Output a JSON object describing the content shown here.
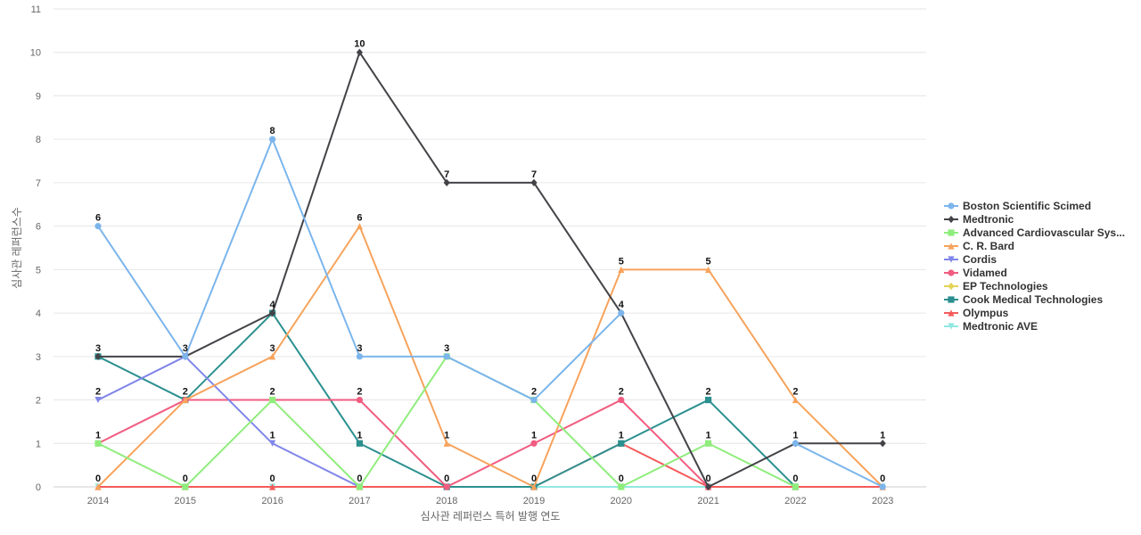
{
  "chart_data": {
    "type": "line",
    "title": "",
    "xlabel": "심사관 레퍼런스 특허 발행 연도",
    "ylabel": "심사관 레퍼런스수",
    "categories": [
      "2014",
      "2015",
      "2016",
      "2017",
      "2018",
      "2019",
      "2020",
      "2021",
      "2022",
      "2023"
    ],
    "ylim": [
      0,
      11
    ],
    "yticks": [
      "0",
      "1",
      "2",
      "3",
      "4",
      "5",
      "6",
      "7",
      "8",
      "9",
      "10",
      "11"
    ],
    "grid": true,
    "legend_position": "right",
    "series": [
      {
        "name": "Boston Scientific Scimed",
        "values": [
          6,
          3,
          8,
          3,
          3,
          2,
          4,
          null,
          1,
          0
        ],
        "color": "#7cb5ec",
        "marker": "circle"
      },
      {
        "name": "Medtronic",
        "values": [
          3,
          3,
          4,
          10,
          7,
          7,
          4,
          0,
          1,
          1
        ],
        "color": "#434348",
        "marker": "diamond"
      },
      {
        "name": "Advanced Cardiovascular Sys...",
        "values": [
          1,
          0,
          2,
          0,
          3,
          2,
          0,
          1,
          0,
          null
        ],
        "color": "#90ed7d",
        "marker": "square"
      },
      {
        "name": "C. R. Bard",
        "values": [
          0,
          2,
          3,
          6,
          1,
          0,
          5,
          5,
          2,
          0
        ],
        "color": "#f7a35c",
        "marker": "triangle"
      },
      {
        "name": "Cordis",
        "values": [
          2,
          3,
          1,
          0,
          null,
          null,
          null,
          null,
          null,
          null
        ],
        "color": "#8085e9",
        "marker": "triangle-down"
      },
      {
        "name": "Vidamed",
        "values": [
          1,
          2,
          2,
          2,
          0,
          1,
          2,
          0,
          null,
          null
        ],
        "color": "#f15c80",
        "marker": "circle"
      },
      {
        "name": "EP Technologies",
        "values": [
          null,
          null,
          null,
          null,
          null,
          null,
          null,
          null,
          null,
          null
        ],
        "color": "#e4d354",
        "marker": "diamond"
      },
      {
        "name": "Cook Medical Technologies",
        "values": [
          3,
          2,
          4,
          1,
          0,
          0,
          1,
          2,
          0,
          null
        ],
        "color": "#2b908f",
        "marker": "square"
      },
      {
        "name": "Olympus",
        "values": [
          0,
          0,
          0,
          0,
          0,
          0,
          1,
          0,
          0,
          0
        ],
        "color": "#f45b5b",
        "marker": "triangle"
      },
      {
        "name": "Medtronic AVE",
        "values": [
          0,
          0,
          0,
          0,
          0,
          0,
          0,
          0,
          0,
          0
        ],
        "color": "#91e8e1",
        "marker": "triangle-down"
      }
    ],
    "data_labels": [
      {
        "category": "2014",
        "text": "6",
        "value": 6
      },
      {
        "category": "2014",
        "text": "3",
        "value": 3
      },
      {
        "category": "2014",
        "text": "2",
        "value": 2
      },
      {
        "category": "2014",
        "text": "1",
        "value": 1
      },
      {
        "category": "2014",
        "text": "0",
        "value": 0
      },
      {
        "category": "2015",
        "text": "3",
        "value": 3
      },
      {
        "category": "2015",
        "text": "2",
        "value": 2
      },
      {
        "category": "2015",
        "text": "0",
        "value": 0
      },
      {
        "category": "2016",
        "text": "8",
        "value": 8
      },
      {
        "category": "2016",
        "text": "4",
        "value": 4
      },
      {
        "category": "2016",
        "text": "3",
        "value": 3
      },
      {
        "category": "2016",
        "text": "2",
        "value": 2
      },
      {
        "category": "2016",
        "text": "1",
        "value": 1
      },
      {
        "category": "2016",
        "text": "0",
        "value": 0
      },
      {
        "category": "2017",
        "text": "10",
        "value": 10
      },
      {
        "category": "2017",
        "text": "6",
        "value": 6
      },
      {
        "category": "2017",
        "text": "3",
        "value": 3
      },
      {
        "category": "2017",
        "text": "2",
        "value": 2
      },
      {
        "category": "2017",
        "text": "1",
        "value": 1
      },
      {
        "category": "2017",
        "text": "0",
        "value": 0
      },
      {
        "category": "2018",
        "text": "7",
        "value": 7
      },
      {
        "category": "2018",
        "text": "3",
        "value": 3
      },
      {
        "category": "2018",
        "text": "1",
        "value": 1
      },
      {
        "category": "2018",
        "text": "0",
        "value": 0
      },
      {
        "category": "2019",
        "text": "7",
        "value": 7
      },
      {
        "category": "2019",
        "text": "2",
        "value": 2
      },
      {
        "category": "2019",
        "text": "1",
        "value": 1
      },
      {
        "category": "2019",
        "text": "0",
        "value": 0
      },
      {
        "category": "2020",
        "text": "5",
        "value": 5
      },
      {
        "category": "2020",
        "text": "4",
        "value": 4
      },
      {
        "category": "2020",
        "text": "2",
        "value": 2
      },
      {
        "category": "2020",
        "text": "1",
        "value": 1
      },
      {
        "category": "2020",
        "text": "0",
        "value": 0
      },
      {
        "category": "2021",
        "text": "5",
        "value": 5
      },
      {
        "category": "2021",
        "text": "2",
        "value": 2
      },
      {
        "category": "2021",
        "text": "1",
        "value": 1
      },
      {
        "category": "2021",
        "text": "0",
        "value": 0
      },
      {
        "category": "2022",
        "text": "2",
        "value": 2
      },
      {
        "category": "2022",
        "text": "1",
        "value": 1
      },
      {
        "category": "2022",
        "text": "0",
        "value": 0
      },
      {
        "category": "2023",
        "text": "1",
        "value": 1
      },
      {
        "category": "2023",
        "text": "0",
        "value": 0
      }
    ]
  }
}
